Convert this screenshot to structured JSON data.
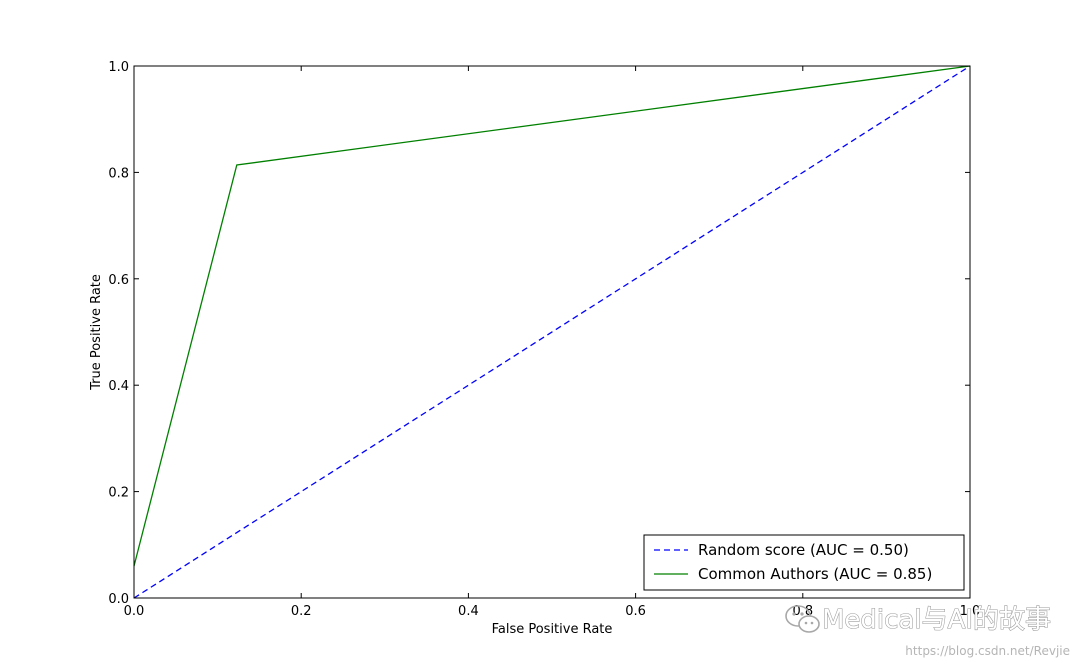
{
  "chart_data": {
    "type": "line",
    "title": "",
    "xlabel": "False Positive Rate",
    "ylabel": "True Positive Rate",
    "xlim": [
      0,
      1
    ],
    "ylim": [
      0,
      1
    ],
    "xticks": [
      0,
      0.2,
      0.4,
      0.6,
      0.8,
      1.0
    ],
    "yticks": [
      0,
      0.2,
      0.4,
      0.6,
      0.8,
      1.0
    ],
    "xtick_labels": [
      "0.0",
      "0.2",
      "0.4",
      "0.6",
      "0.8",
      "1.0"
    ],
    "ytick_labels": [
      "0.0",
      "0.2",
      "0.4",
      "0.6",
      "0.8",
      "1.0"
    ],
    "grid": false,
    "legend_position": "lower-right",
    "series": [
      {
        "name": "Random score (AUC = 0.50)",
        "color": "#0000ff",
        "style": "dashed",
        "x": [
          0,
          1
        ],
        "y": [
          0,
          1
        ]
      },
      {
        "name": "Common Authors (AUC = 0.85)",
        "color": "#008000",
        "style": "solid",
        "x": [
          0,
          0.123,
          1
        ],
        "y": [
          0.06,
          0.814,
          1
        ]
      }
    ]
  },
  "watermark": {
    "icon": "wechat-icon",
    "text": "Medical与AI的故事",
    "url": "https://blog.csdn.net/Revjie"
  }
}
